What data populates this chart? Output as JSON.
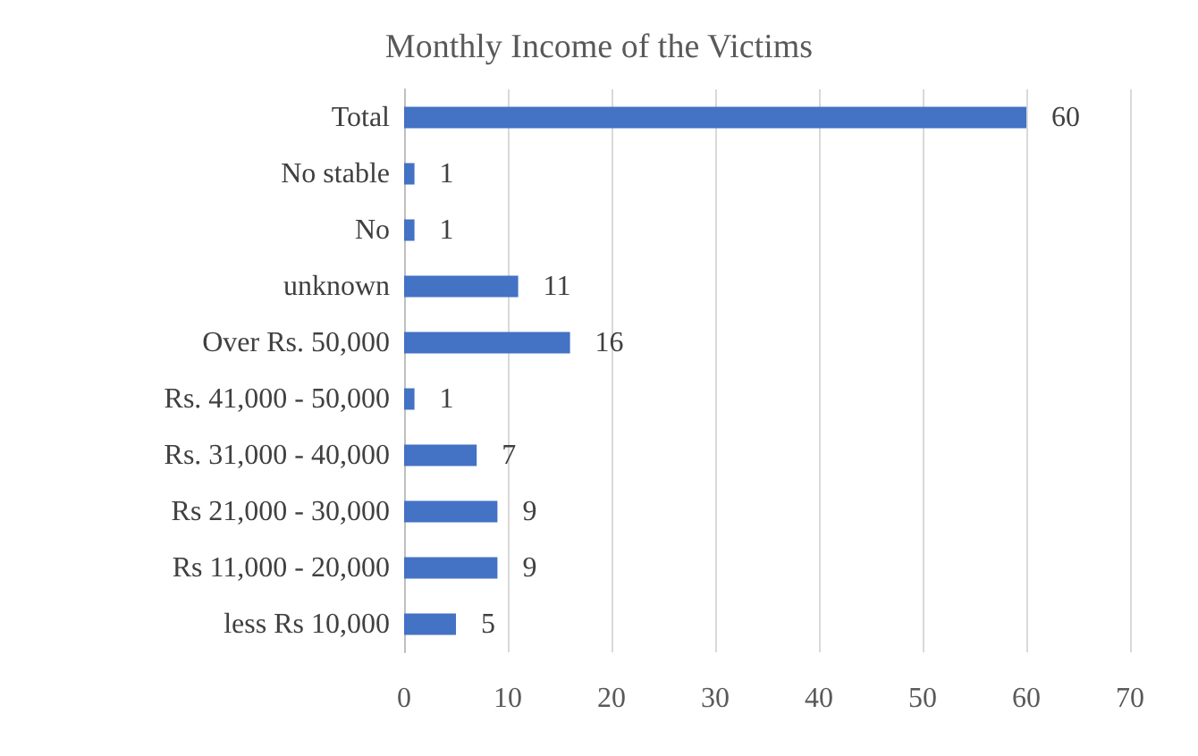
{
  "chart_data": {
    "type": "bar",
    "orientation": "horizontal",
    "title": "Monthly Income of the Victims",
    "categories": [
      "Total",
      "No stable",
      "No",
      "unknown",
      "Over Rs. 50,000",
      "Rs. 41,000 - 50,000",
      "Rs. 31,000 - 40,000",
      "Rs 21,000 - 30,000",
      "Rs 11,000 - 20,000",
      "less Rs 10,000"
    ],
    "values": [
      60,
      1,
      1,
      11,
      16,
      1,
      7,
      9,
      9,
      5
    ],
    "color": "#4472c4",
    "xlim": [
      0,
      70
    ],
    "xticks": [
      0,
      10,
      20,
      30,
      40,
      50,
      60,
      70
    ],
    "grid": "x",
    "data_labels": true
  }
}
